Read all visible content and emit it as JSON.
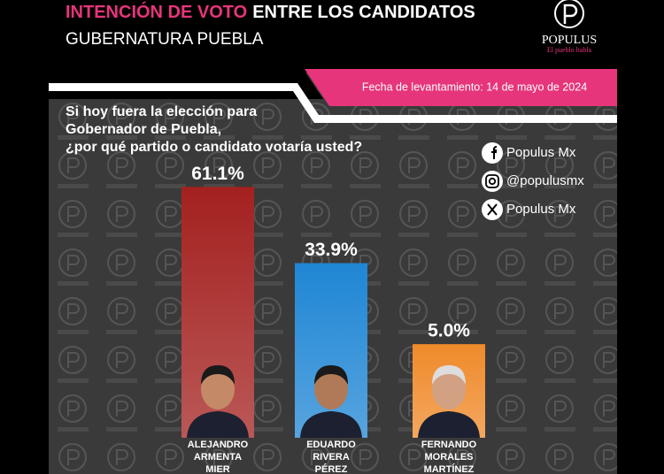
{
  "header": {
    "title_highlight": "INTENCIÓN DE VOTO",
    "title": "ENTRE LOS CANDIDATOS",
    "subtitle": "GUBERNATURA PUEBLA",
    "date": "Fecha de levantamiento: 14 de mayo de 2024"
  },
  "logo": {
    "name": "POPULUS",
    "tagline": "El pueblo habla"
  },
  "question": [
    "Si hoy fuera la elección para",
    "Gobernador de Puebla,",
    "¿por qué partido o candidato votaría usted?"
  ],
  "social": [
    "Populus Mx",
    "@populusmx",
    "Populus Mx"
  ],
  "chart_data": {
    "type": "bar",
    "categories": [
      "ALEJANDRO ARMENTA MIER",
      "EDUARDO RIVERA PÉREZ",
      "FERNANDO MORALES MARTÍNEZ"
    ],
    "values": [
      61.1,
      33.9,
      5.0
    ],
    "value_labels": [
      "61.1%",
      "33.9%",
      "5.0%"
    ],
    "colors": [
      "#a3211f",
      "#1f86d4",
      "#ef8a2a"
    ]
  }
}
